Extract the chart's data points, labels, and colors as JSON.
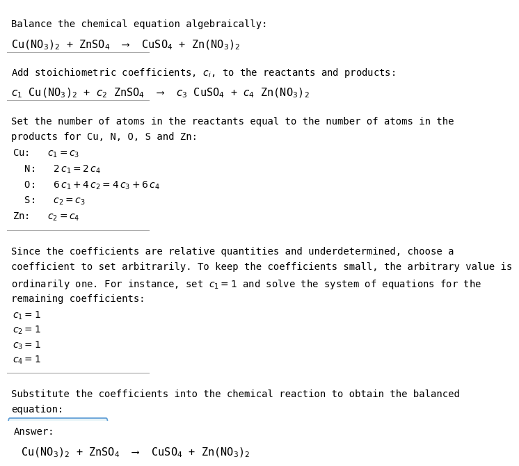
{
  "title_line1": "Balance the chemical equation algebraically:",
  "title_line2_math": "Cu(NO$_3$)$_2$ + ZnSO$_4$  ⟶  CuSO$_4$ + Zn(NO$_3$)$_2$",
  "section2_intro": "Add stoichiometric coefficients, $c_i$, to the reactants and products:",
  "section2_eq": "$c_1$ Cu(NO$_3$)$_2$ + $c_2$ ZnSO$_4$  ⟶  $c_3$ CuSO$_4$ + $c_4$ Zn(NO$_3$)$_2$",
  "section3_intro1": "Set the number of atoms in the reactants equal to the number of atoms in the",
  "section3_intro2": "products for Cu, N, O, S and Zn:",
  "section3_equations": [
    "Cu:   $c_1 = c_3$",
    "  N:   $2\\,c_1 = 2\\,c_4$",
    "  O:   $6\\,c_1 + 4\\,c_2 = 4\\,c_3 + 6\\,c_4$",
    "  S:   $c_2 = c_3$",
    "Zn:   $c_2 = c_4$"
  ],
  "section4_intro1": "Since the coefficients are relative quantities and underdetermined, choose a",
  "section4_intro2": "coefficient to set arbitrarily. To keep the coefficients small, the arbitrary value is",
  "section4_intro3": "ordinarily one. For instance, set $c_1 = 1$ and solve the system of equations for the",
  "section4_intro4": "remaining coefficients:",
  "section4_solutions": [
    "$c_1 = 1$",
    "$c_2 = 1$",
    "$c_3 = 1$",
    "$c_4 = 1$"
  ],
  "section5_intro1": "Substitute the coefficients into the chemical reaction to obtain the balanced",
  "section5_intro2": "equation:",
  "answer_label": "Answer:",
  "answer_eq": "Cu(NO$_3$)$_2$ + ZnSO$_4$  ⟶  CuSO$_4$ + Zn(NO$_3$)$_2$",
  "bg_color": "#ffffff",
  "text_color": "#000000",
  "box_bg": "#e8f4f8",
  "box_border": "#5b9bd5",
  "font_size": 10,
  "math_font_size": 11
}
